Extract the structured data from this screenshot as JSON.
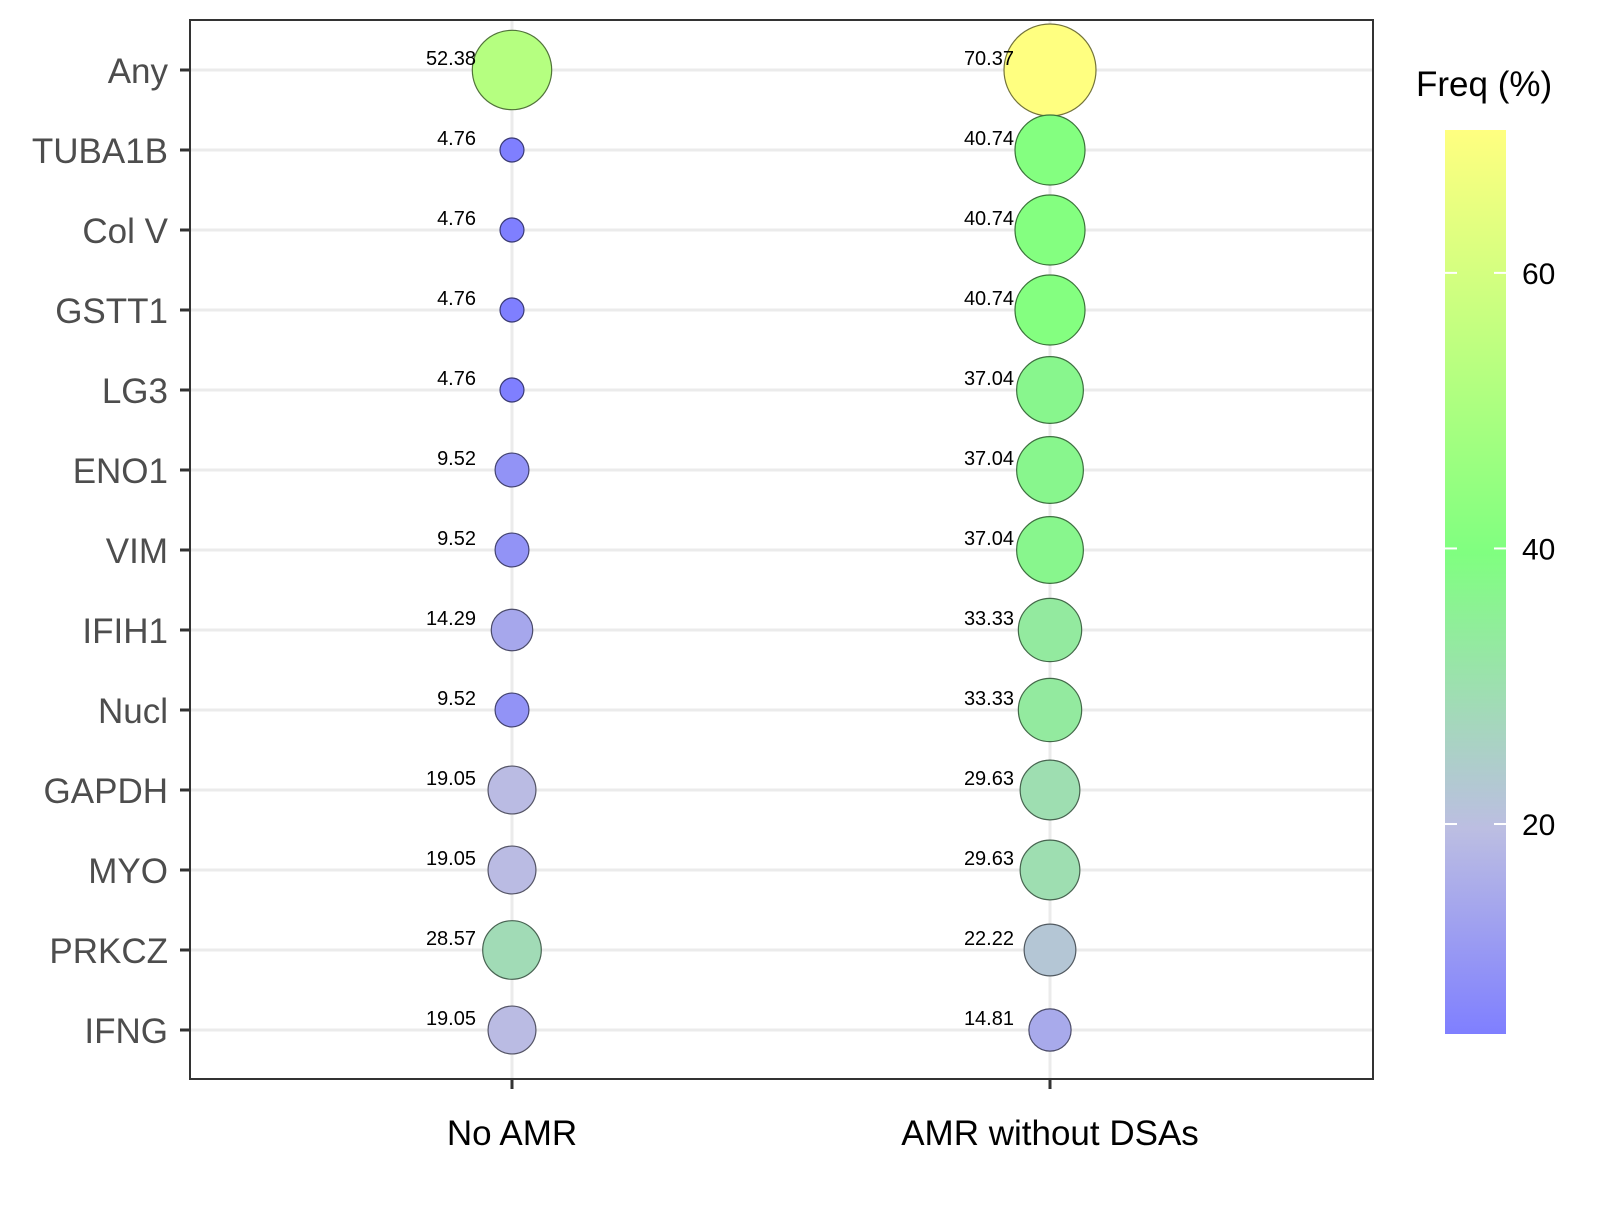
{
  "chart_data": {
    "type": "bubble",
    "rows": [
      "Any",
      "TUBA1B",
      "Col V",
      "GSTT1",
      "LG3",
      "ENO1",
      "VIM",
      "IFIH1",
      "Nucl",
      "GAPDH",
      "MYO",
      "PRKCZ",
      "IFNG"
    ],
    "columns": [
      "No AMR",
      "AMR without DSAs"
    ],
    "values": [
      [
        52.38,
        70.37
      ],
      [
        4.76,
        40.74
      ],
      [
        4.76,
        40.74
      ],
      [
        4.76,
        40.74
      ],
      [
        4.76,
        37.04
      ],
      [
        9.52,
        37.04
      ],
      [
        9.52,
        37.04
      ],
      [
        14.29,
        33.33
      ],
      [
        9.52,
        33.33
      ],
      [
        19.05,
        29.63
      ],
      [
        19.05,
        29.63
      ],
      [
        28.57,
        22.22
      ],
      [
        19.05,
        14.81
      ]
    ],
    "value_labels": [
      [
        "52.38",
        "70.37"
      ],
      [
        "4.76",
        "40.74"
      ],
      [
        "4.76",
        "40.74"
      ],
      [
        "4.76",
        "40.74"
      ],
      [
        "4.76",
        "37.04"
      ],
      [
        "9.52",
        "37.04"
      ],
      [
        "9.52",
        "37.04"
      ],
      [
        "14.29",
        "33.33"
      ],
      [
        "9.52",
        "33.33"
      ],
      [
        "19.05",
        "29.63"
      ],
      [
        "19.05",
        "29.63"
      ],
      [
        "28.57",
        "22.22"
      ],
      [
        "19.05",
        "14.81"
      ]
    ],
    "size_encodes": "value",
    "color_encodes": "value",
    "legend": {
      "title": "Freq (%)",
      "placement": "right",
      "ticks": [
        20,
        40,
        60
      ],
      "tick_labels": [
        "20",
        "40",
        "60"
      ],
      "range": [
        4.76,
        70.37
      ],
      "colors": [
        "#7f7fff",
        "#bcbee2",
        "#80ff80",
        "#ffff80"
      ]
    },
    "grid": true
  }
}
